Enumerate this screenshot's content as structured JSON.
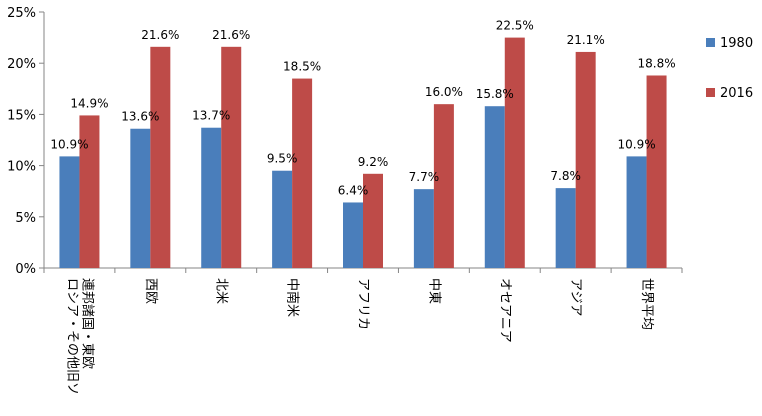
{
  "chart_data": {
    "type": "bar",
    "categories": [
      [
        "ロシア・その他旧ソ",
        "連邦諸国・東欧"
      ],
      [
        "西欧"
      ],
      [
        "北米"
      ],
      [
        "中南米"
      ],
      [
        "アフリカ"
      ],
      [
        "中東"
      ],
      [
        "オセアニア"
      ],
      [
        "アジア"
      ],
      [
        "世界平均"
      ]
    ],
    "series": [
      {
        "name": "1980",
        "color": "#4a7ebb",
        "values": [
          10.9,
          13.6,
          13.7,
          9.5,
          6.4,
          7.7,
          15.8,
          7.8,
          10.9
        ],
        "labels": [
          "10.9%",
          "13.6%",
          "13.7%",
          "9.5%",
          "6.4%",
          "7.7%",
          "15.8%",
          "7.8%",
          "10.9%"
        ]
      },
      {
        "name": "2016",
        "color": "#be4b48",
        "values": [
          14.9,
          21.6,
          21.6,
          18.5,
          9.2,
          16.0,
          22.5,
          21.1,
          18.8
        ],
        "labels": [
          "14.9%",
          "21.6%",
          "21.6%",
          "18.5%",
          "9.2%",
          "16.0%",
          "22.5%",
          "21.1%",
          "18.8%"
        ]
      }
    ],
    "yticks": [
      "0%",
      "5%",
      "10%",
      "15%",
      "20%",
      "25%"
    ],
    "ylim": [
      0,
      25
    ],
    "legend_position": "right",
    "grid": false
  }
}
